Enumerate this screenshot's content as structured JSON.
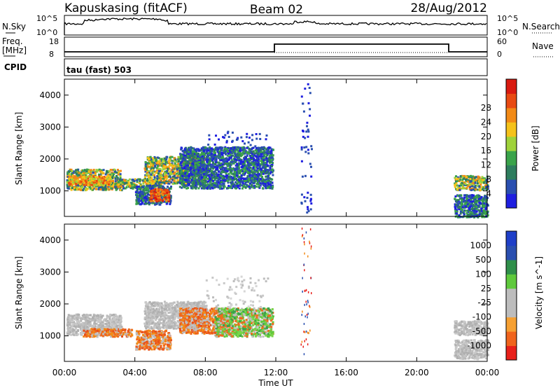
{
  "header": {
    "station": "Kapuskasing (fitACF)",
    "beam": "Beam 02",
    "date": "28/Aug/2012"
  },
  "noise_panel": {
    "left_label": "N.Sky",
    "right_label": "N.Search",
    "left_ticks": [
      "10^5",
      "10^0"
    ],
    "right_ticks": [
      "10^5",
      "10^0"
    ]
  },
  "freq_panel": {
    "left_label_line1": "Freq.",
    "left_label_line2": "[MHz]",
    "right_label": "Nave",
    "left_ticks": [
      "18",
      "8"
    ],
    "right_ticks": [
      "60",
      "0"
    ]
  },
  "cpid_panel": {
    "label": "CPID",
    "text": "tau (fast) 503"
  },
  "colors": {
    "power": [
      "#1f1fe0",
      "#2a4fb0",
      "#2e7d5e",
      "#3aa34a",
      "#9fd23a",
      "#f5c21a",
      "#f28a16",
      "#e84a12",
      "#d91a10"
    ],
    "velocity": [
      "#e8201a",
      "#f0641c",
      "#f6a032",
      "#bdbdbd",
      "#bdbdbd",
      "#5fc93c",
      "#2f8f4a",
      "#2a4fb0",
      "#1f3fc8"
    ]
  },
  "chart_data": [
    {
      "type": "heatmap",
      "panel": "power",
      "xlabel": "",
      "ylabel": "Slant Range [km]",
      "x_ticks": [
        "00:00",
        "04:00",
        "08:00",
        "12:00",
        "16:00",
        "20:00",
        "00:00"
      ],
      "y_ticks": [
        1000,
        2000,
        3000,
        4000
      ],
      "xlim": [
        0,
        24
      ],
      "ylim": [
        200,
        4500
      ],
      "colorbar_label": "Power [dB]",
      "colorbar_ticks": [
        4,
        8,
        12,
        16,
        20,
        24,
        28
      ],
      "bands": [
        {
          "t": [
            0.1,
            3.2
          ],
          "r": [
            1050,
            1700
          ],
          "level": "med"
        },
        {
          "t": [
            0.2,
            2.6
          ],
          "r": [
            1200,
            1500
          ],
          "level": "high"
        },
        {
          "t": [
            3.0,
            5.5
          ],
          "r": [
            1100,
            1400
          ],
          "level": "med"
        },
        {
          "t": [
            4.5,
            8.0
          ],
          "r": [
            1250,
            2100
          ],
          "level": "med"
        },
        {
          "t": [
            6.5,
            11.8
          ],
          "r": [
            1100,
            2400
          ],
          "level": "low"
        },
        {
          "t": [
            4.0,
            6.0
          ],
          "r": [
            600,
            1200
          ],
          "level": "low"
        },
        {
          "t": [
            4.8,
            5.9
          ],
          "r": [
            700,
            1100
          ],
          "level": "peak"
        },
        {
          "t": [
            8.0,
            11.5
          ],
          "r": [
            1900,
            2900
          ],
          "level": "faint"
        },
        {
          "t": [
            13.4,
            14.0
          ],
          "r": [
            300,
            4500
          ],
          "level": "faint"
        },
        {
          "t": [
            22.1,
            24.0
          ],
          "r": [
            1050,
            1500
          ],
          "level": "med"
        },
        {
          "t": [
            22.1,
            24.0
          ],
          "r": [
            200,
            900
          ],
          "level": "low"
        }
      ]
    },
    {
      "type": "heatmap",
      "panel": "velocity",
      "xlabel": "Time UT",
      "ylabel": "Slant Range [km]",
      "x_ticks": [
        "00:00",
        "04:00",
        "08:00",
        "12:00",
        "16:00",
        "20:00",
        "00:00"
      ],
      "y_ticks": [
        1000,
        2000,
        3000,
        4000
      ],
      "xlim": [
        0,
        24
      ],
      "ylim": [
        200,
        4500
      ],
      "colorbar_label": "Velocity [m s^-1]",
      "colorbar_ticks": [
        -1000,
        -500,
        -100,
        -25,
        25,
        100,
        500,
        1000
      ],
      "bands": [
        {
          "t": [
            0.1,
            3.2
          ],
          "r": [
            1050,
            1700
          ],
          "level": "gray"
        },
        {
          "t": [
            1.0,
            3.8
          ],
          "r": [
            1000,
            1250
          ],
          "level": "orange"
        },
        {
          "t": [
            4.0,
            6.0
          ],
          "r": [
            600,
            1200
          ],
          "level": "orange"
        },
        {
          "t": [
            4.5,
            8.0
          ],
          "r": [
            1250,
            2100
          ],
          "level": "gray"
        },
        {
          "t": [
            6.5,
            9.5
          ],
          "r": [
            1100,
            1900
          ],
          "level": "orange"
        },
        {
          "t": [
            8.5,
            11.8
          ],
          "r": [
            1000,
            1900
          ],
          "level": "green"
        },
        {
          "t": [
            8.0,
            11.5
          ],
          "r": [
            1900,
            2900
          ],
          "level": "faint"
        },
        {
          "t": [
            13.4,
            14.0
          ],
          "r": [
            300,
            4500
          ],
          "level": "streak"
        },
        {
          "t": [
            22.1,
            24.0
          ],
          "r": [
            1050,
            1500
          ],
          "level": "gray"
        },
        {
          "t": [
            22.1,
            24.0
          ],
          "r": [
            300,
            900
          ],
          "level": "gray"
        }
      ]
    }
  ]
}
